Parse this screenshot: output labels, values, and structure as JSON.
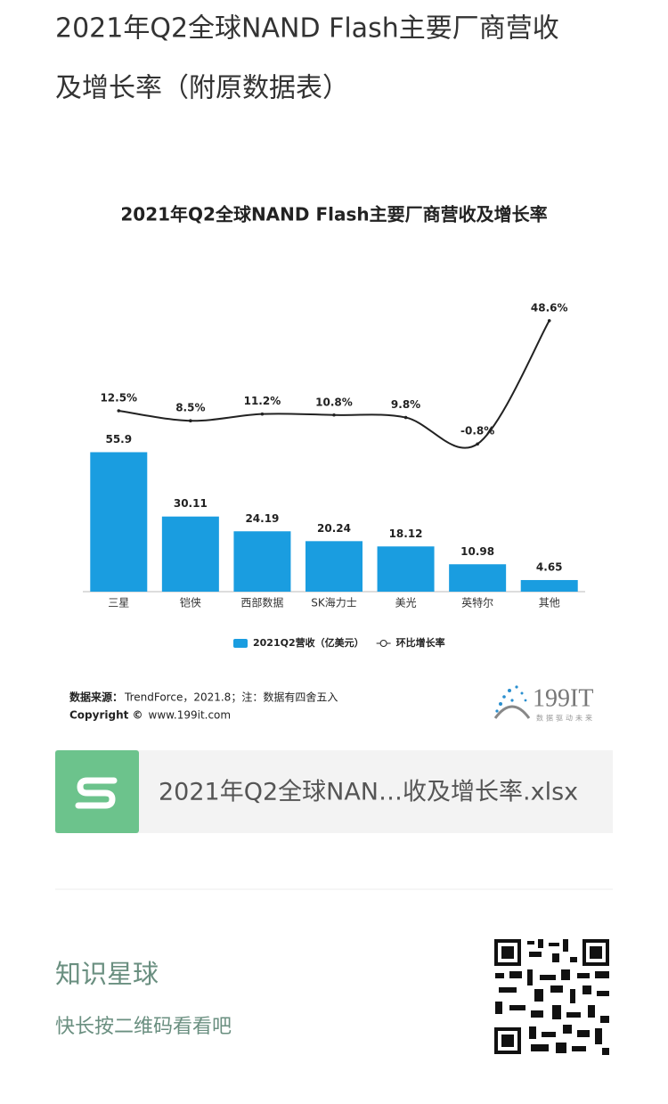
{
  "page_title": [
    "2021年Q2全球NAND Flash主要厂商营收",
    "及增长率（附原数据表）"
  ],
  "chart_data": {
    "type": "bar-line",
    "title": "2021年Q2全球NAND Flash主要厂商营收及增长率",
    "categories": [
      "三星",
      "铠侠",
      "西部数据",
      "SK海力士",
      "美光",
      "英特尔",
      "其他"
    ],
    "series": [
      {
        "name": "2021Q2营收（亿美元）",
        "color": "#1a9de0",
        "type": "bar",
        "values": [
          55.9,
          30.11,
          24.19,
          20.24,
          18.12,
          10.98,
          4.65
        ]
      },
      {
        "name": "环比增长率",
        "color": "#222222",
        "type": "line",
        "axis": "y2",
        "values": [
          12.5,
          8.5,
          11.2,
          10.8,
          9.8,
          -0.8,
          48.6
        ],
        "value_labels": [
          "12.5%",
          "8.5%",
          "11.2%",
          "10.8%",
          "9.8%",
          "-0.8%",
          "48.6%"
        ]
      }
    ],
    "ylim": [
      0,
      140
    ],
    "y2lim": [
      -60,
      80
    ],
    "legend": "bottom",
    "source_label": "数据来源：",
    "source_text": "TrendForce，2021.8；注：数据有四舍五入",
    "copyright_label": "Copyright ©",
    "copyright_text": "www.199it.com",
    "logo": "199IT",
    "logo_slogan": "数据驱动未来"
  },
  "file_card": {
    "name": "2021年Q2全球NAN…收及增长率.xlsx"
  },
  "footer": {
    "title": "知识星球",
    "hint": "快长按二维码看看吧"
  }
}
